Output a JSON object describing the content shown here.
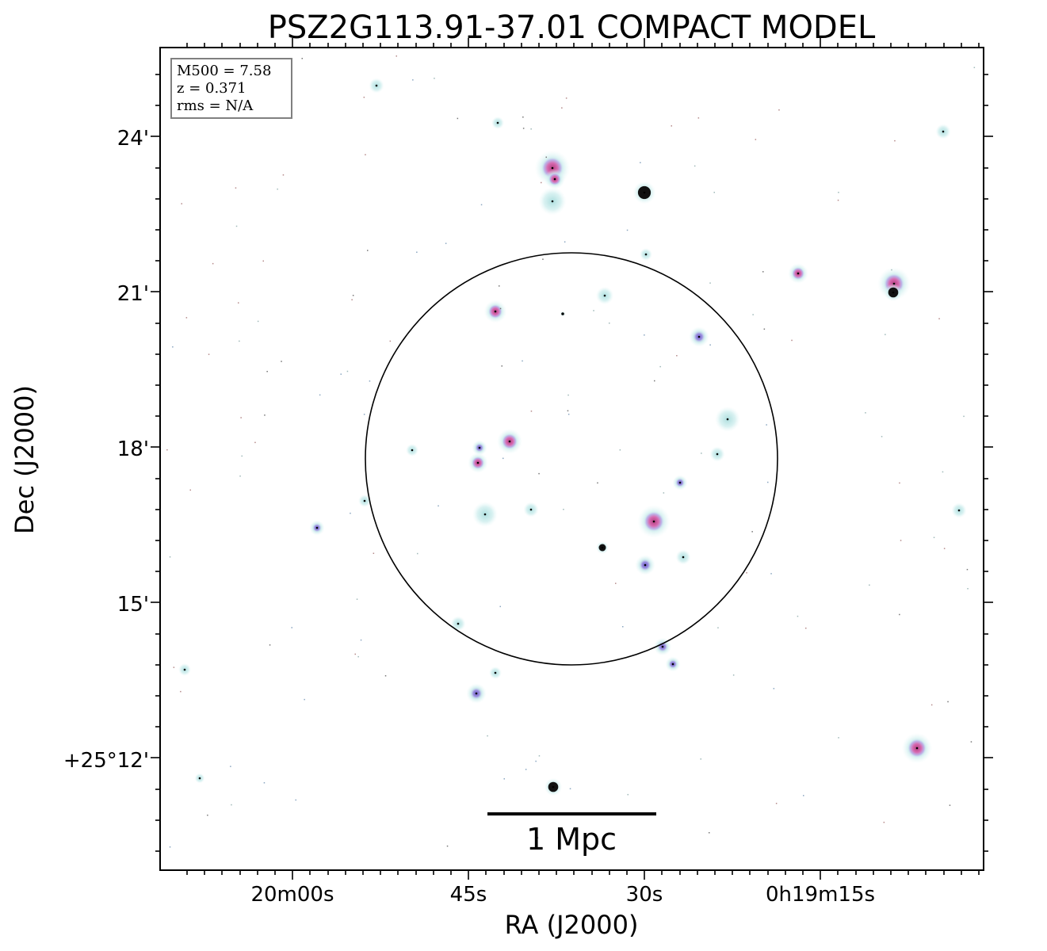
{
  "chart_data": {
    "type": "image",
    "title": "PSZ2G113.91-37.01 COMPACT MODEL",
    "xlabel": "RA (J2000)",
    "ylabel": "Dec (J2000)",
    "x_ticks": [
      "20m00s",
      "45s",
      "30s",
      "0h19m15s"
    ],
    "y_ticks": [
      "24'",
      "21'",
      "18'",
      "15'",
      "+25°12'"
    ],
    "info_box": {
      "m500": "M500 = 7.58",
      "z": "z = 0.371",
      "rms": "rms = N/A"
    },
    "scale_bar_label": "1 Mpc",
    "colors": {
      "halo": "#bfe8e8",
      "core_magenta": "#d86ab0",
      "core_violet": "#8a7fd6",
      "core_dark": "#000000"
    }
  }
}
